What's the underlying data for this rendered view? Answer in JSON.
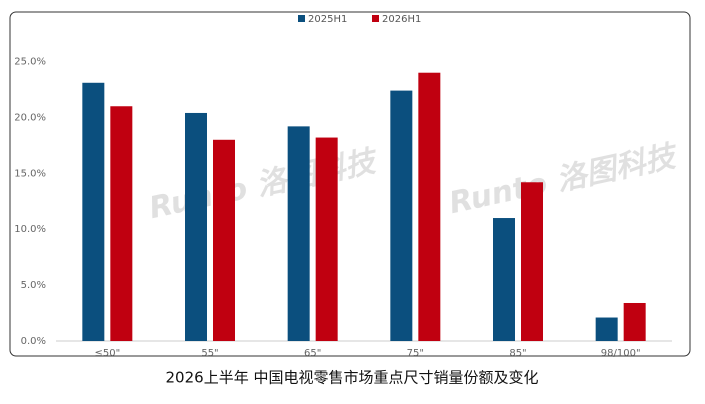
{
  "chart_data": {
    "type": "bar",
    "title": "2026上半年 中国电视零售市场重点尺寸销量份额及变化",
    "watermark": "Runto 洛图科技",
    "categories": [
      "≤50\"",
      "55\"",
      "65\"",
      "75\"",
      "85\"",
      "98/100\""
    ],
    "series": [
      {
        "name": "2025H1",
        "color": "#0b4f7e",
        "values": [
          23.1,
          20.4,
          19.2,
          22.4,
          11.0,
          2.1
        ]
      },
      {
        "name": "2026H1",
        "color": "#c00010",
        "values": [
          21.0,
          18.0,
          18.2,
          24.0,
          14.2,
          3.4
        ]
      }
    ],
    "ylim": [
      0,
      28
    ],
    "yticks": [
      {
        "value": 0,
        "label": "0.0%"
      },
      {
        "value": 5,
        "label": "5.0%"
      },
      {
        "value": 10,
        "label": "10.0%"
      },
      {
        "value": 15,
        "label": "15.0%"
      },
      {
        "value": 20,
        "label": "20.0%"
      },
      {
        "value": 25,
        "label": "25.0%"
      }
    ],
    "grid": false
  }
}
